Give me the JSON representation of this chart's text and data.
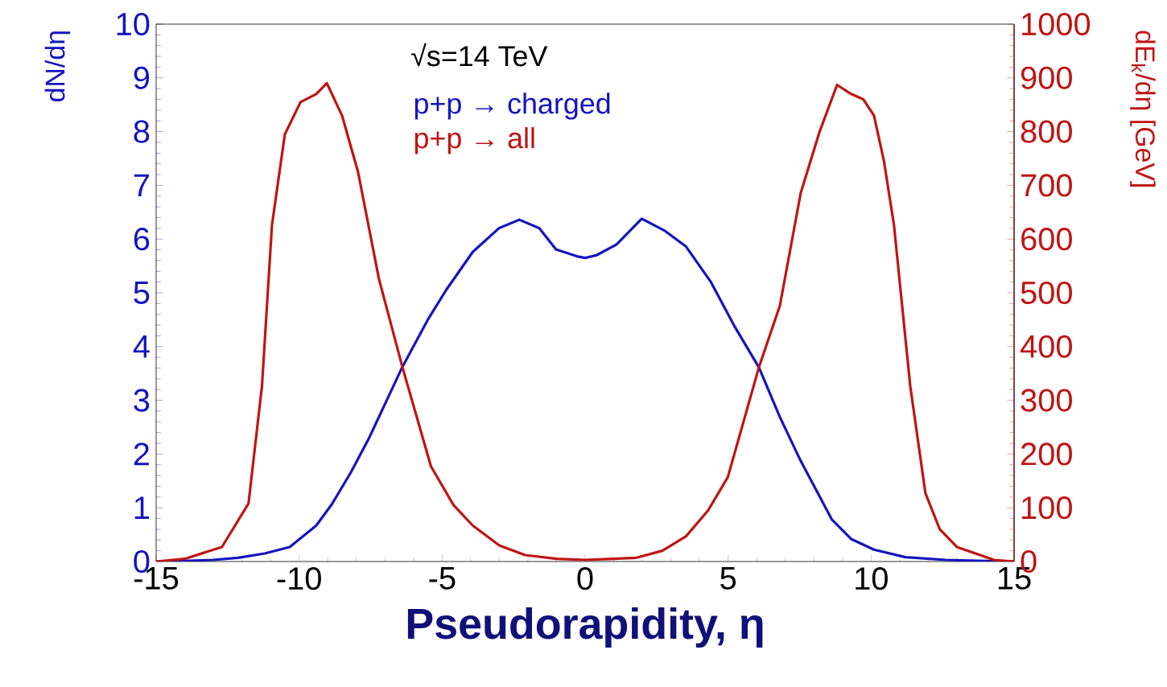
{
  "chart_data": {
    "type": "line",
    "xlabel": "Pseudorapidity, η",
    "ylabel": "dN/dη",
    "y2label": "dE$_{k}$/dη [GeV]",
    "annotations": [
      "√s=14 TeV"
    ],
    "xlim": [
      -15,
      15
    ],
    "xticks": [
      -15,
      -10,
      -5,
      0,
      5,
      10,
      15
    ],
    "ylim": [
      0,
      10
    ],
    "yticks": [
      0,
      1,
      2,
      3,
      4,
      5,
      6,
      7,
      8,
      9,
      10
    ],
    "y2lim": [
      0,
      1000
    ],
    "y2ticks": [
      0,
      100,
      200,
      300,
      400,
      500,
      600,
      700,
      800,
      900,
      1000
    ],
    "legend": "top",
    "grid": false,
    "marker": "none",
    "line_style": "solid",
    "series": [
      {
        "name": "p+p → charged",
        "color": "#1414c0",
        "x": [
          -15,
          -14,
          -13,
          -12.13,
          -11.2,
          -10.33,
          -9.4,
          -8.85,
          -8.2,
          -7.58,
          -6.39,
          -5.5,
          -4.85,
          -3.93,
          -3.02,
          -2.3,
          -1.6,
          -1.02,
          -0.29,
          0,
          0.4,
          1.1,
          1.98,
          2.8,
          3.53,
          4.4,
          5.2,
          6.08,
          6.8,
          7.54,
          8.63,
          9.3,
          10.1,
          11.2,
          12.6,
          14,
          15
        ],
        "values": [
          0,
          0.01,
          0.03,
          0.07,
          0.15,
          0.27,
          0.67,
          1.07,
          1.65,
          2.27,
          3.62,
          4.5,
          5.06,
          5.76,
          6.2,
          6.36,
          6.2,
          5.81,
          5.68,
          5.65,
          5.7,
          5.9,
          6.38,
          6.15,
          5.86,
          5.2,
          4.4,
          3.61,
          2.7,
          1.87,
          0.78,
          0.42,
          0.22,
          0.08,
          0.03,
          0.01,
          0
        ]
      },
      {
        "name": "p+p → all",
        "color": "#c01414",
        "axis": "y2",
        "x": [
          -15,
          -14,
          -12.7,
          -11.77,
          -11.3,
          -10.95,
          -10.5,
          -9.95,
          -9.4,
          -9.03,
          -8.5,
          -7.94,
          -7.21,
          -6.39,
          -5.39,
          -4.6,
          -3.93,
          -3,
          -2.1,
          -1,
          0,
          1,
          1.8,
          2.7,
          3.53,
          4.3,
          4.99,
          6.08,
          6.81,
          7.54,
          8.2,
          8.81,
          9.3,
          9.73,
          10.1,
          10.45,
          10.8,
          11.37,
          11.9,
          12.4,
          13,
          14.3,
          15
        ],
        "values": [
          0,
          5,
          27,
          108,
          326,
          626,
          795,
          855,
          870,
          890,
          830,
          725,
          526,
          362,
          177,
          105,
          67,
          30,
          12,
          5,
          3,
          5,
          7,
          20,
          47,
          95,
          157,
          362,
          476,
          686,
          800,
          887,
          870,
          860,
          830,
          745,
          626,
          326,
          127,
          60,
          27,
          3,
          0
        ]
      }
    ]
  }
}
